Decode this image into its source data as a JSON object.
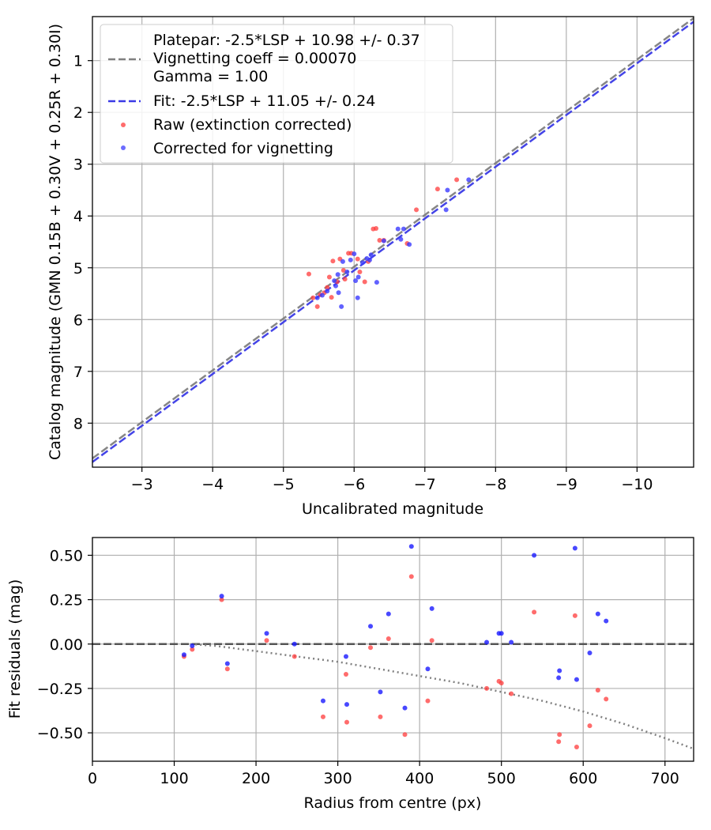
{
  "chart_data": [
    {
      "type": "scatter",
      "xlabel": "Uncalibrated magnitude",
      "ylabel": "Catalog magnitude (GMN 0.15B + 0.30V + 0.25R + 0.30I)",
      "xlim": [
        -2.3,
        -10.8
      ],
      "ylim": [
        8.85,
        0.15
      ],
      "x_inverted": true,
      "y_inverted": true,
      "xticks": [
        -3,
        -4,
        -5,
        -6,
        -7,
        -8,
        -9,
        -10
      ],
      "xtick_labels": [
        "−3",
        "−4",
        "−5",
        "−6",
        "−7",
        "−8",
        "−9",
        "−10"
      ],
      "yticks": [
        1,
        2,
        3,
        4,
        5,
        6,
        7,
        8
      ],
      "ytick_labels": [
        "1",
        "2",
        "3",
        "4",
        "5",
        "6",
        "7",
        "8"
      ],
      "grid": true,
      "legend_position": "top-left",
      "legend": [
        {
          "label_lines": [
            "Platepar: -2.5*LSP + 10.98 +/- 0.37",
            "Vignetting coeff = 0.00070",
            "Gamma = 1.00"
          ],
          "style": "dashed-line",
          "color": "#808080"
        },
        {
          "label_lines": [
            "Fit: -2.5*LSP + 11.05 +/- 0.24"
          ],
          "style": "dashed-line",
          "color": "#3a3ae6"
        },
        {
          "label_lines": [
            "Raw (extinction corrected)"
          ],
          "style": "marker",
          "color": "#ff3b3b"
        },
        {
          "label_lines": [
            "Corrected for vignetting"
          ],
          "style": "marker",
          "color": "#3b3bff"
        }
      ],
      "lines": [
        {
          "name": "Platepar",
          "slope": 1.0,
          "intercept": 10.98,
          "color": "#808080"
        },
        {
          "name": "Fit",
          "slope": 1.0,
          "intercept": 11.05,
          "color": "#3a3ae6"
        }
      ],
      "series": [
        {
          "name": "Raw (extinction corrected)",
          "color": "#ff3b3b",
          "points": [
            [
              -5.36,
              5.12
            ],
            [
              -5.42,
              5.58
            ],
            [
              -5.48,
              5.75
            ],
            [
              -5.52,
              5.52
            ],
            [
              -5.58,
              5.48
            ],
            [
              -5.62,
              5.38
            ],
            [
              -5.65,
              5.18
            ],
            [
              -5.68,
              5.57
            ],
            [
              -5.7,
              4.87
            ],
            [
              -5.76,
              5.27
            ],
            [
              -5.8,
              4.83
            ],
            [
              -5.85,
              5.05
            ],
            [
              -5.87,
              5.22
            ],
            [
              -5.92,
              4.72
            ],
            [
              -5.96,
              4.72
            ],
            [
              -6.05,
              4.83
            ],
            [
              -6.08,
              5.08
            ],
            [
              -6.15,
              5.27
            ],
            [
              -6.2,
              4.88
            ],
            [
              -6.27,
              4.25
            ],
            [
              -6.31,
              4.24
            ],
            [
              -6.36,
              4.47
            ],
            [
              -6.42,
              4.47
            ],
            [
              -6.75,
              4.53
            ],
            [
              -6.88,
              3.88
            ],
            [
              -7.18,
              3.48
            ],
            [
              -7.45,
              3.3
            ]
          ]
        },
        {
          "name": "Corrected for vignetting",
          "color": "#3b3bff",
          "points": [
            [
              -5.48,
              5.58
            ],
            [
              -5.55,
              5.53
            ],
            [
              -5.62,
              5.45
            ],
            [
              -5.72,
              5.25
            ],
            [
              -5.74,
              5.35
            ],
            [
              -5.77,
              5.13
            ],
            [
              -5.78,
              5.48
            ],
            [
              -5.82,
              5.75
            ],
            [
              -5.84,
              4.88
            ],
            [
              -5.9,
              5.08
            ],
            [
              -5.95,
              4.85
            ],
            [
              -6.0,
              4.73
            ],
            [
              -6.02,
              5.25
            ],
            [
              -6.05,
              5.58
            ],
            [
              -6.06,
              5.18
            ],
            [
              -6.12,
              4.9
            ],
            [
              -6.18,
              4.82
            ],
            [
              -6.22,
              4.85
            ],
            [
              -6.24,
              4.75
            ],
            [
              -6.32,
              5.28
            ],
            [
              -6.42,
              4.48
            ],
            [
              -6.62,
              4.25
            ],
            [
              -6.66,
              4.45
            ],
            [
              -6.7,
              4.25
            ],
            [
              -6.78,
              4.55
            ],
            [
              -7.3,
              3.88
            ],
            [
              -7.32,
              3.5
            ],
            [
              -7.62,
              3.3
            ]
          ]
        }
      ]
    },
    {
      "type": "scatter",
      "xlabel": "Radius from centre (px)",
      "ylabel": "Fit residuals (mag)",
      "xlim": [
        0,
        735
      ],
      "ylim": [
        -0.66,
        0.6
      ],
      "xticks": [
        0,
        100,
        200,
        300,
        400,
        500,
        600,
        700
      ],
      "xtick_labels": [
        "0",
        "100",
        "200",
        "300",
        "400",
        "500",
        "600",
        "700"
      ],
      "yticks": [
        0.5,
        0.25,
        0.0,
        -0.25,
        -0.5
      ],
      "ytick_labels": [
        "0.50",
        "0.25",
        "0.00",
        "−0.25",
        "−0.50"
      ],
      "grid": true,
      "reference_line": {
        "y": 0.0,
        "style": "dashed",
        "color": "#555555"
      },
      "vignetting_curve": {
        "style": "dotted",
        "color": "#808080",
        "points": [
          [
            120,
            0.0
          ],
          [
            150,
            -0.01
          ],
          [
            200,
            -0.04
          ],
          [
            250,
            -0.07
          ],
          [
            300,
            -0.1
          ],
          [
            350,
            -0.14
          ],
          [
            400,
            -0.18
          ],
          [
            450,
            -0.22
          ],
          [
            500,
            -0.27
          ],
          [
            550,
            -0.32
          ],
          [
            600,
            -0.38
          ],
          [
            650,
            -0.45
          ],
          [
            700,
            -0.53
          ],
          [
            735,
            -0.59
          ]
        ]
      },
      "series": [
        {
          "name": "Raw (extinction corrected)",
          "color": "#ff3b3b",
          "points": [
            [
              112,
              -0.07
            ],
            [
              122,
              -0.03
            ],
            [
              158,
              0.25
            ],
            [
              165,
              -0.14
            ],
            [
              213,
              0.02
            ],
            [
              247,
              -0.07
            ],
            [
              282,
              -0.41
            ],
            [
              310,
              -0.17
            ],
            [
              311,
              -0.44
            ],
            [
              340,
              -0.02
            ],
            [
              352,
              -0.41
            ],
            [
              362,
              0.03
            ],
            [
              382,
              -0.51
            ],
            [
              390,
              0.38
            ],
            [
              410,
              -0.32
            ],
            [
              415,
              0.02
            ],
            [
              482,
              -0.25
            ],
            [
              497,
              -0.21
            ],
            [
              500,
              -0.22
            ],
            [
              512,
              -0.28
            ],
            [
              540,
              0.18
            ],
            [
              570,
              -0.55
            ],
            [
              571,
              -0.51
            ],
            [
              590,
              0.16
            ],
            [
              592,
              -0.58
            ],
            [
              608,
              -0.46
            ],
            [
              618,
              -0.26
            ],
            [
              628,
              -0.31
            ]
          ]
        },
        {
          "name": "Corrected for vignetting",
          "color": "#1a1aff",
          "points": [
            [
              112,
              -0.06
            ],
            [
              122,
              -0.01
            ],
            [
              158,
              0.27
            ],
            [
              165,
              -0.11
            ],
            [
              213,
              0.06
            ],
            [
              247,
              0.0
            ],
            [
              282,
              -0.32
            ],
            [
              310,
              -0.07
            ],
            [
              311,
              -0.34
            ],
            [
              340,
              0.1
            ],
            [
              352,
              -0.27
            ],
            [
              362,
              0.17
            ],
            [
              382,
              -0.36
            ],
            [
              390,
              0.55
            ],
            [
              410,
              -0.14
            ],
            [
              415,
              0.2
            ],
            [
              482,
              0.01
            ],
            [
              497,
              0.06
            ],
            [
              500,
              0.06
            ],
            [
              512,
              0.01
            ],
            [
              540,
              0.5
            ],
            [
              570,
              -0.19
            ],
            [
              571,
              -0.15
            ],
            [
              590,
              0.54
            ],
            [
              592,
              -0.2
            ],
            [
              608,
              -0.05
            ],
            [
              618,
              0.17
            ],
            [
              628,
              0.13
            ]
          ]
        }
      ]
    }
  ]
}
